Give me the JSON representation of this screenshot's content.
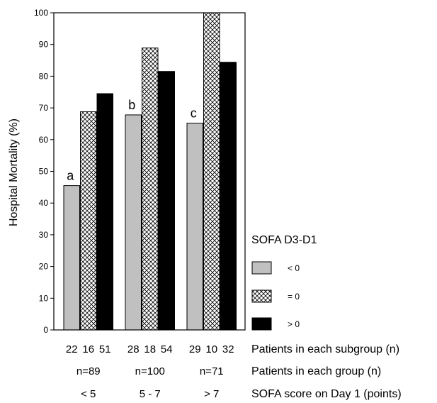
{
  "chart_data": {
    "type": "bar",
    "title": "",
    "ylabel": "Hospital Mortality (%)",
    "ylim": [
      0,
      100
    ],
    "yticks": [
      0,
      10,
      20,
      30,
      40,
      50,
      60,
      70,
      80,
      90,
      100
    ],
    "grid": false,
    "categories": [
      "< 5",
      "5 - 7",
      "> 7"
    ],
    "legend": {
      "title": "SOFA D3-D1",
      "placement": "right"
    },
    "series": [
      {
        "name": "< 0",
        "values": [
          45.5,
          67.8,
          65.2
        ],
        "subgroup_n": [
          "22",
          "28",
          "29"
        ],
        "color": "#c0c0c0",
        "pattern": "solid"
      },
      {
        "name": "= 0",
        "values": [
          68.8,
          88.9,
          100
        ],
        "subgroup_n": [
          "16",
          "18",
          "10"
        ],
        "color": "#ffffff",
        "pattern": "crosshatch"
      },
      {
        "name": "> 0",
        "values": [
          74.5,
          81.5,
          84.4
        ],
        "subgroup_n": [
          "51",
          "54",
          "32"
        ],
        "color": "#000000",
        "pattern": "solid"
      }
    ],
    "bar_annotations": [
      "a",
      "b",
      "c"
    ],
    "group_n": [
      "n=89",
      "n=100",
      "n=71"
    ],
    "row_labels": {
      "subgroup": "Patients in each subgroup (n)",
      "group": "Patients in each group (n)",
      "category": "SOFA score on Day 1 (points)"
    }
  }
}
